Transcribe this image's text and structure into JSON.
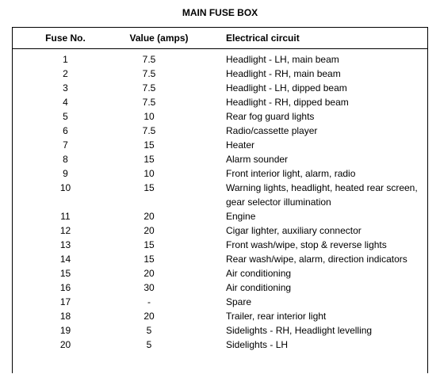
{
  "title": "MAIN FUSE BOX",
  "columns": {
    "fuse": "Fuse No.",
    "value": "Value (amps)",
    "circuit": "Electrical circuit"
  },
  "rows": [
    {
      "fuse": "1",
      "value": "7.5",
      "circuit": "Headlight - LH, main beam"
    },
    {
      "fuse": "2",
      "value": "7.5",
      "circuit": "Headlight - RH, main beam"
    },
    {
      "fuse": "3",
      "value": "7.5",
      "circuit": "Headlight - LH, dipped beam"
    },
    {
      "fuse": "4",
      "value": "7.5",
      "circuit": "Headlight - RH, dipped beam"
    },
    {
      "fuse": "5",
      "value": "10",
      "circuit": "Rear fog guard lights"
    },
    {
      "fuse": "6",
      "value": "7.5",
      "circuit": "Radio/cassette player"
    },
    {
      "fuse": "7",
      "value": "15",
      "circuit": "Heater"
    },
    {
      "fuse": "8",
      "value": "15",
      "circuit": "Alarm sounder"
    },
    {
      "fuse": "9",
      "value": "10",
      "circuit": "Front interior light, alarm, radio"
    },
    {
      "fuse": "10",
      "value": "15",
      "circuit": "Warning lights, headlight, heated rear screen,\ngear selector illumination"
    },
    {
      "fuse": "11",
      "value": "20",
      "circuit": "Engine"
    },
    {
      "fuse": "12",
      "value": "20",
      "circuit": "Cigar lighter, auxiliary connector"
    },
    {
      "fuse": "13",
      "value": "15",
      "circuit": "Front wash/wipe, stop & reverse lights"
    },
    {
      "fuse": "14",
      "value": "15",
      "circuit": "Rear wash/wipe, alarm, direction indicators"
    },
    {
      "fuse": "15",
      "value": "20",
      "circuit": "Air conditioning"
    },
    {
      "fuse": "16",
      "value": "30",
      "circuit": "Air conditioning"
    },
    {
      "fuse": "17",
      "value": "-",
      "circuit": "Spare"
    },
    {
      "fuse": "18",
      "value": "20",
      "circuit": "Trailer, rear interior light"
    },
    {
      "fuse": "19",
      "value": "5",
      "circuit": "Sidelights - RH, Headlight levelling"
    },
    {
      "fuse": "20",
      "value": "5",
      "circuit": "Sidelights - LH"
    }
  ]
}
